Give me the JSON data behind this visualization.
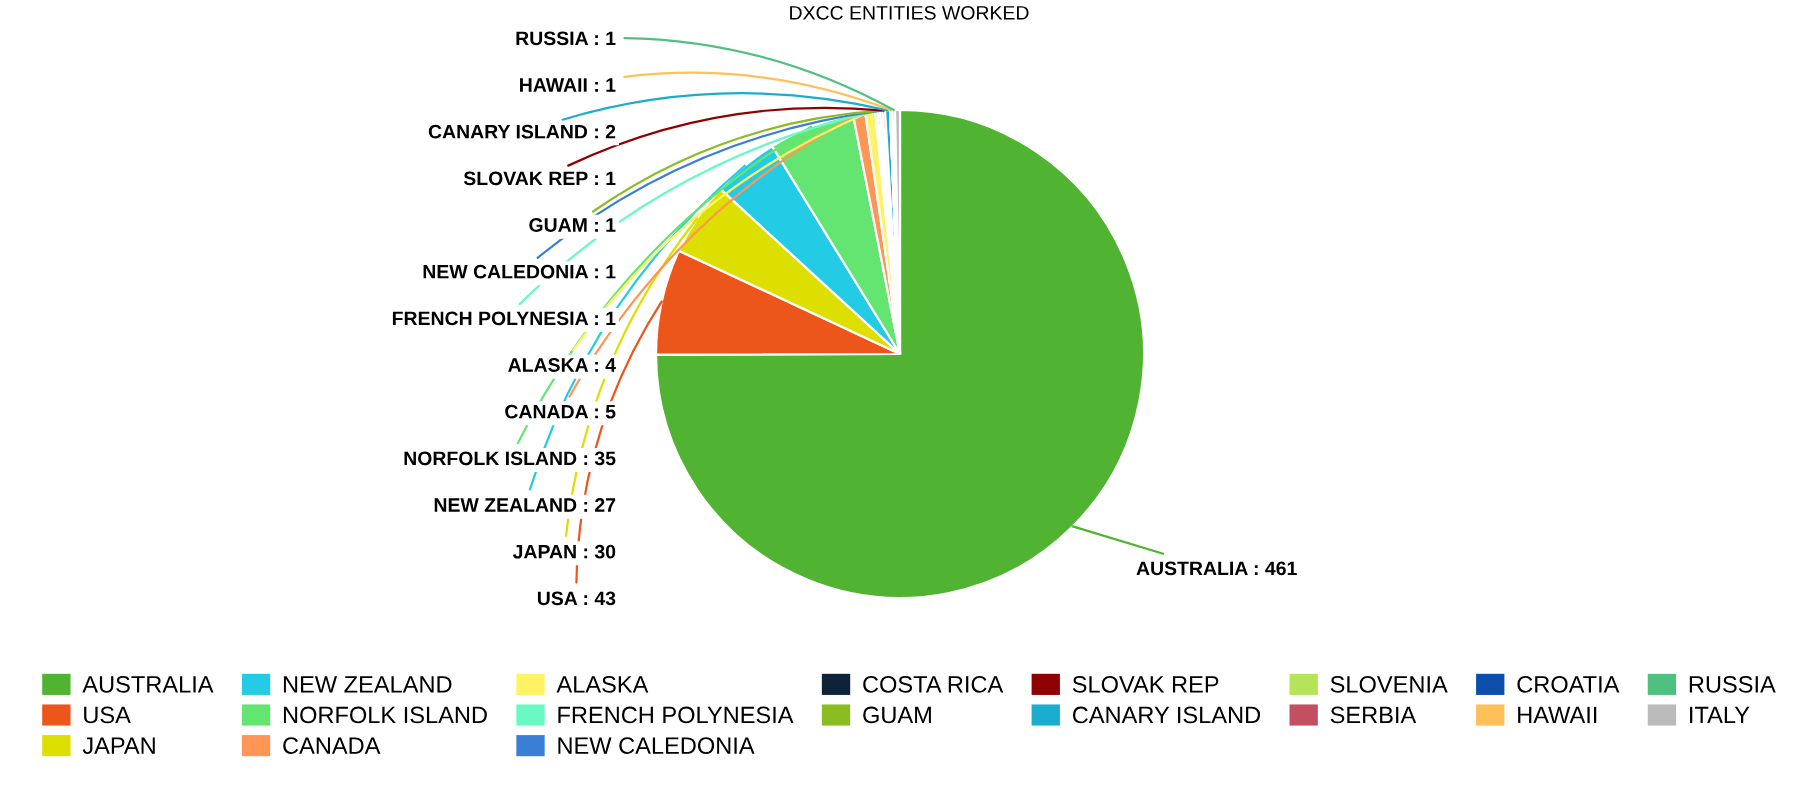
{
  "chart_data": {
    "type": "pie",
    "title": "DXCC ENTITIES WORKED",
    "categories": [
      "AUSTRALIA",
      "USA",
      "JAPAN",
      "NEW ZEALAND",
      "NORFOLK ISLAND",
      "CANADA",
      "ALASKA",
      "FRENCH POLYNESIA",
      "NEW CALEDONIA",
      "COSTA RICA",
      "GUAM",
      "SLOVAK REP",
      "CANARY ISLAND",
      "SLOVENIA",
      "SERBIA",
      "CROATIA",
      "HAWAII",
      "RUSSIA",
      "ITALY"
    ],
    "values": [
      461,
      43,
      30,
      27,
      35,
      5,
      4,
      1,
      1,
      null,
      1,
      1,
      2,
      null,
      null,
      null,
      1,
      1,
      2
    ],
    "value_labels": [
      "AUSTRALIA : 461",
      "USA : 43",
      "JAPAN : 30",
      "NEW ZEALAND : 27",
      "NORFOLK ISLAND : 35",
      "CANADA : 5",
      "ALASKA : 4",
      "FRENCH POLYNESIA : 1",
      "NEW CALEDONIA : 1",
      null,
      "GUAM : 1",
      "SLOVAK REP : 1",
      "CANARY ISLAND : 2",
      null,
      null,
      null,
      "HAWAII : 1",
      "RUSSIA : 1",
      null
    ],
    "colors": [
      "#50b432",
      "#ed561b",
      "#dddf00",
      "#24cbe5",
      "#64e572",
      "#ff9655",
      "#fff263",
      "#6af9c4",
      "#3a7fd5",
      "#0d233a",
      "#8bbc21",
      "#910000",
      "#1aadce",
      "#b5e35a",
      "#c25060",
      "#0d4eab",
      "#ffc05a",
      "#50c080",
      "#bbbbbb"
    ],
    "legend": "bottom"
  }
}
